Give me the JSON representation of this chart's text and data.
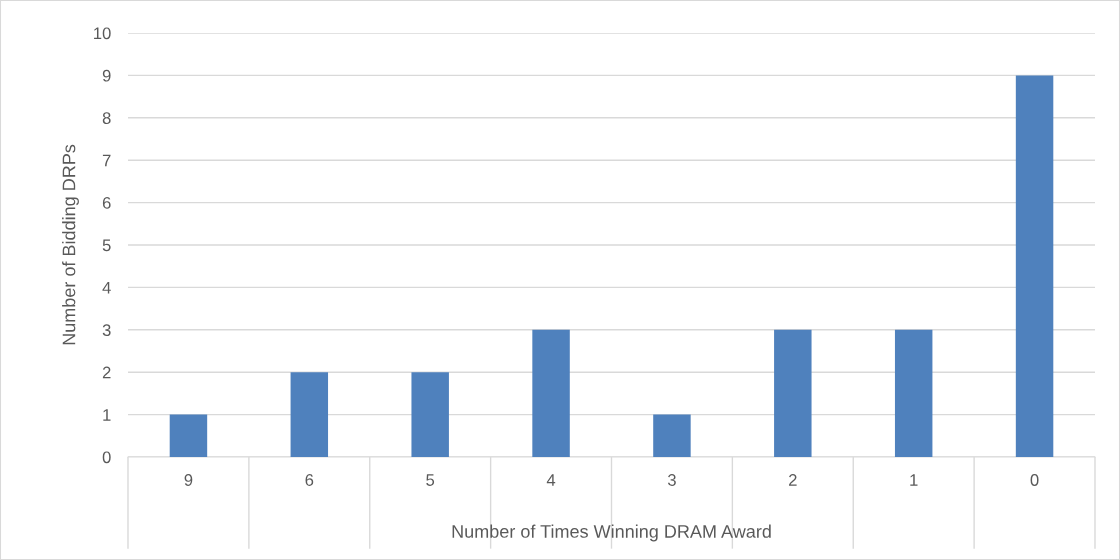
{
  "chart_data": {
    "type": "bar",
    "xlabel": "Number of Times Winning DRAM Award",
    "ylabel": "Number of Bidding DRPs",
    "categories": [
      "9",
      "6",
      "5",
      "4",
      "3",
      "2",
      "1",
      "0"
    ],
    "values": [
      1,
      2,
      2,
      3,
      1,
      3,
      3,
      9
    ],
    "color": "#4f81bd",
    "ylim": [
      0,
      10
    ],
    "yticks": [
      0,
      1,
      2,
      3,
      4,
      5,
      6,
      7,
      8,
      9,
      10
    ],
    "grid": "y"
  }
}
